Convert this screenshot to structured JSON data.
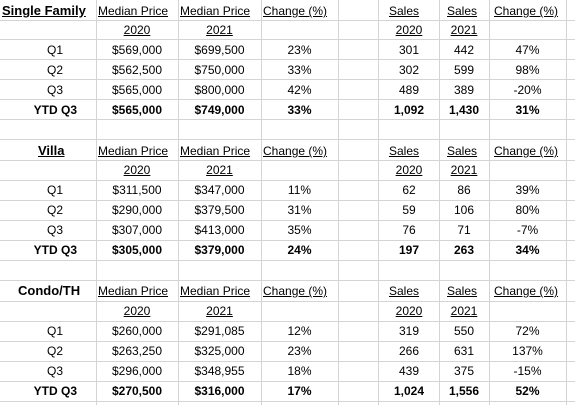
{
  "headers": {
    "median_price": "Median Price",
    "change": "Change (%)",
    "sales": "Sales",
    "year_2020": "2020",
    "year_2021": "2021"
  },
  "sections": [
    {
      "title": "Single Family",
      "rows": [
        {
          "label": "Q1",
          "mp2020": "$569,000",
          "mp2021": "$699,500",
          "pchg": "23%",
          "s2020": "301",
          "s2021": "442",
          "schg": "47%"
        },
        {
          "label": "Q2",
          "mp2020": "$562,500",
          "mp2021": "$750,000",
          "pchg": "33%",
          "s2020": "302",
          "s2021": "599",
          "schg": "98%"
        },
        {
          "label": "Q3",
          "mp2020": "$565,000",
          "mp2021": "$800,000",
          "pchg": "42%",
          "s2020": "489",
          "s2021": "389",
          "schg": "-20%"
        },
        {
          "label": "YTD Q3",
          "mp2020": "$565,000",
          "mp2021": "$749,000",
          "pchg": "33%",
          "s2020": "1,092",
          "s2021": "1,430",
          "schg": "31%"
        }
      ]
    },
    {
      "title": "Villa",
      "rows": [
        {
          "label": "Q1",
          "mp2020": "$311,500",
          "mp2021": "$347,000",
          "pchg": "11%",
          "s2020": "62",
          "s2021": "86",
          "schg": "39%"
        },
        {
          "label": "Q2",
          "mp2020": "$290,000",
          "mp2021": "$379,500",
          "pchg": "31%",
          "s2020": "59",
          "s2021": "106",
          "schg": "80%"
        },
        {
          "label": "Q3",
          "mp2020": "$307,000",
          "mp2021": "$413,000",
          "pchg": "35%",
          "s2020": "76",
          "s2021": "71",
          "schg": "-7%"
        },
        {
          "label": "YTD Q3",
          "mp2020": "$305,000",
          "mp2021": "$379,000",
          "pchg": "24%",
          "s2020": "197",
          "s2021": "263",
          "schg": "34%"
        }
      ]
    },
    {
      "title": "Condo/TH",
      "rows": [
        {
          "label": "Q1",
          "mp2020": "$260,000",
          "mp2021": "$291,085",
          "pchg": "12%",
          "s2020": "319",
          "s2021": "550",
          "schg": "72%"
        },
        {
          "label": "Q2",
          "mp2020": "$263,250",
          "mp2021": "$325,000",
          "pchg": "23%",
          "s2020": "266",
          "s2021": "631",
          "schg": "137%"
        },
        {
          "label": "Q3",
          "mp2020": "$296,000",
          "mp2021": "$348,955",
          "pchg": "18%",
          "s2020": "439",
          "s2021": "375",
          "schg": "-15%"
        },
        {
          "label": "YTD Q3",
          "mp2020": "$270,500",
          "mp2021": "$316,000",
          "pchg": "17%",
          "s2020": "1,024",
          "s2021": "1,556",
          "schg": "52%"
        }
      ]
    }
  ]
}
